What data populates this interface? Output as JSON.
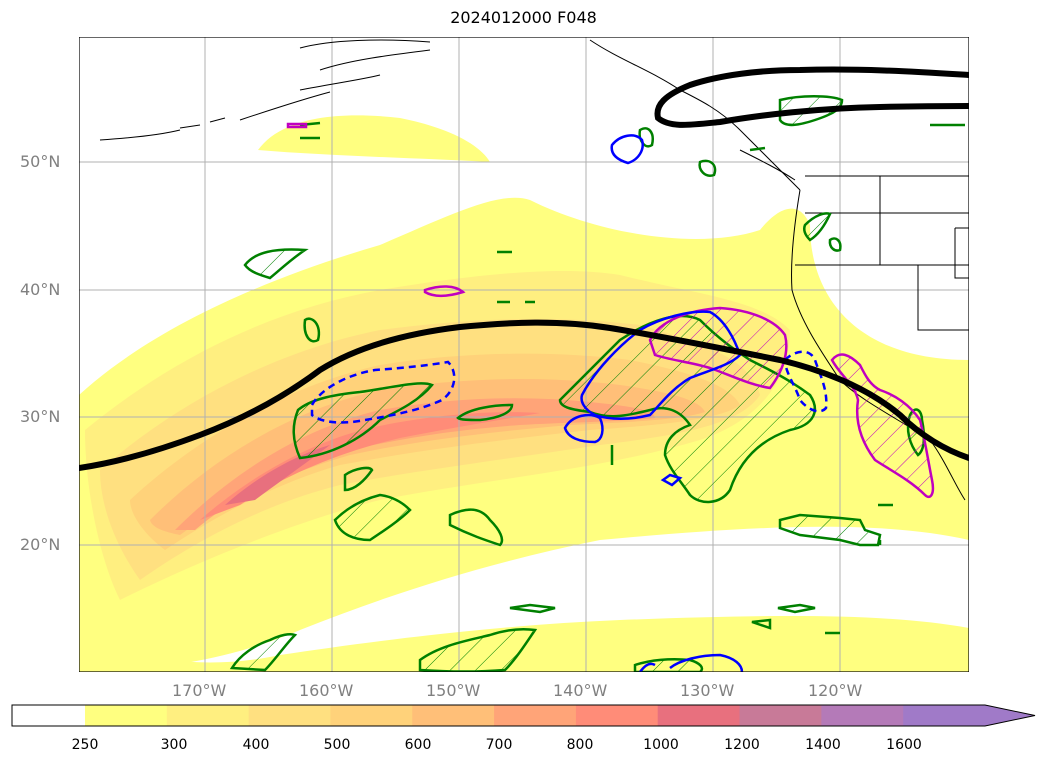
{
  "title": "2024012000 F048",
  "longitude_labels": [
    "170°W",
    "160°W",
    "150°W",
    "140°W",
    "130°W",
    "120°W"
  ],
  "latitude_labels": [
    "50°N",
    "40°N",
    "30°N",
    "20°N"
  ],
  "colorbar": {
    "ticks": [
      "250",
      "300",
      "400",
      "500",
      "600",
      "700",
      "800",
      "1000",
      "1200",
      "1400",
      "1600"
    ],
    "colors": [
      "#ffffff",
      "#ffff80",
      "#ffef80",
      "#ffe080",
      "#ffd27a",
      "#ffbf78",
      "#ffa478",
      "#ff8c78",
      "#e8707e",
      "#c87a98",
      "#b47ab8",
      "#a07ac8"
    ]
  },
  "colors": {
    "contour_black": "#000000",
    "contour_green": "#008000",
    "contour_blue": "#0000ff",
    "contour_magenta": "#c000c0"
  }
}
